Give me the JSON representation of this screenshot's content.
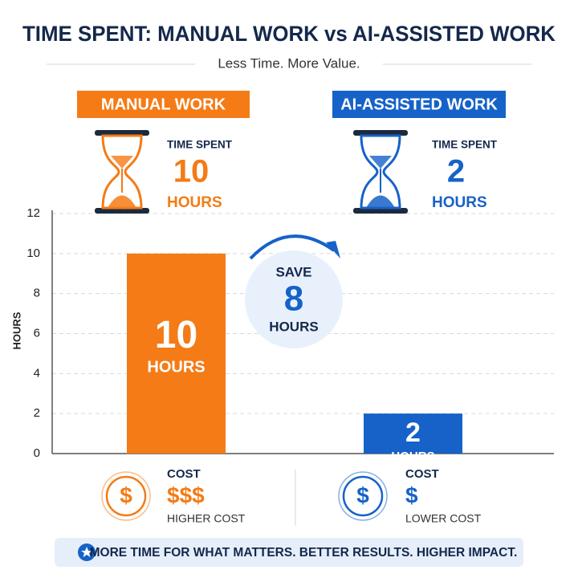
{
  "header": {
    "title": "TIME SPENT: MANUAL WORK vs AI-ASSISTED WORK",
    "subtitle": "Less Time. More Value."
  },
  "chart_data": {
    "type": "bar",
    "y_label": "HOURS",
    "categories": [
      "MANUAL WORK",
      "AI-ASSISTED WORK"
    ],
    "values": [
      10,
      2
    ],
    "colors": [
      "#f47b16",
      "#1662c8"
    ],
    "ylim": [
      0,
      12
    ],
    "yticks": [
      0,
      2,
      4,
      6,
      8,
      10,
      12
    ],
    "grid": true,
    "caption": "TIME SPENT",
    "unit": "HOURS"
  },
  "savings": {
    "label": "SAVE",
    "value": 8,
    "unit": "HOURS"
  },
  "costs": [
    {
      "icon": "$",
      "caption": "COST",
      "level": "$$$",
      "note": "HIGHER COST"
    },
    {
      "icon": "$",
      "caption": "COST",
      "level": "$",
      "note": "LOWER COST"
    }
  ],
  "footer": {
    "text": "MORE TIME FOR WHAT MATTERS. BETTER RESULTS. HIGHER IMPACT."
  }
}
